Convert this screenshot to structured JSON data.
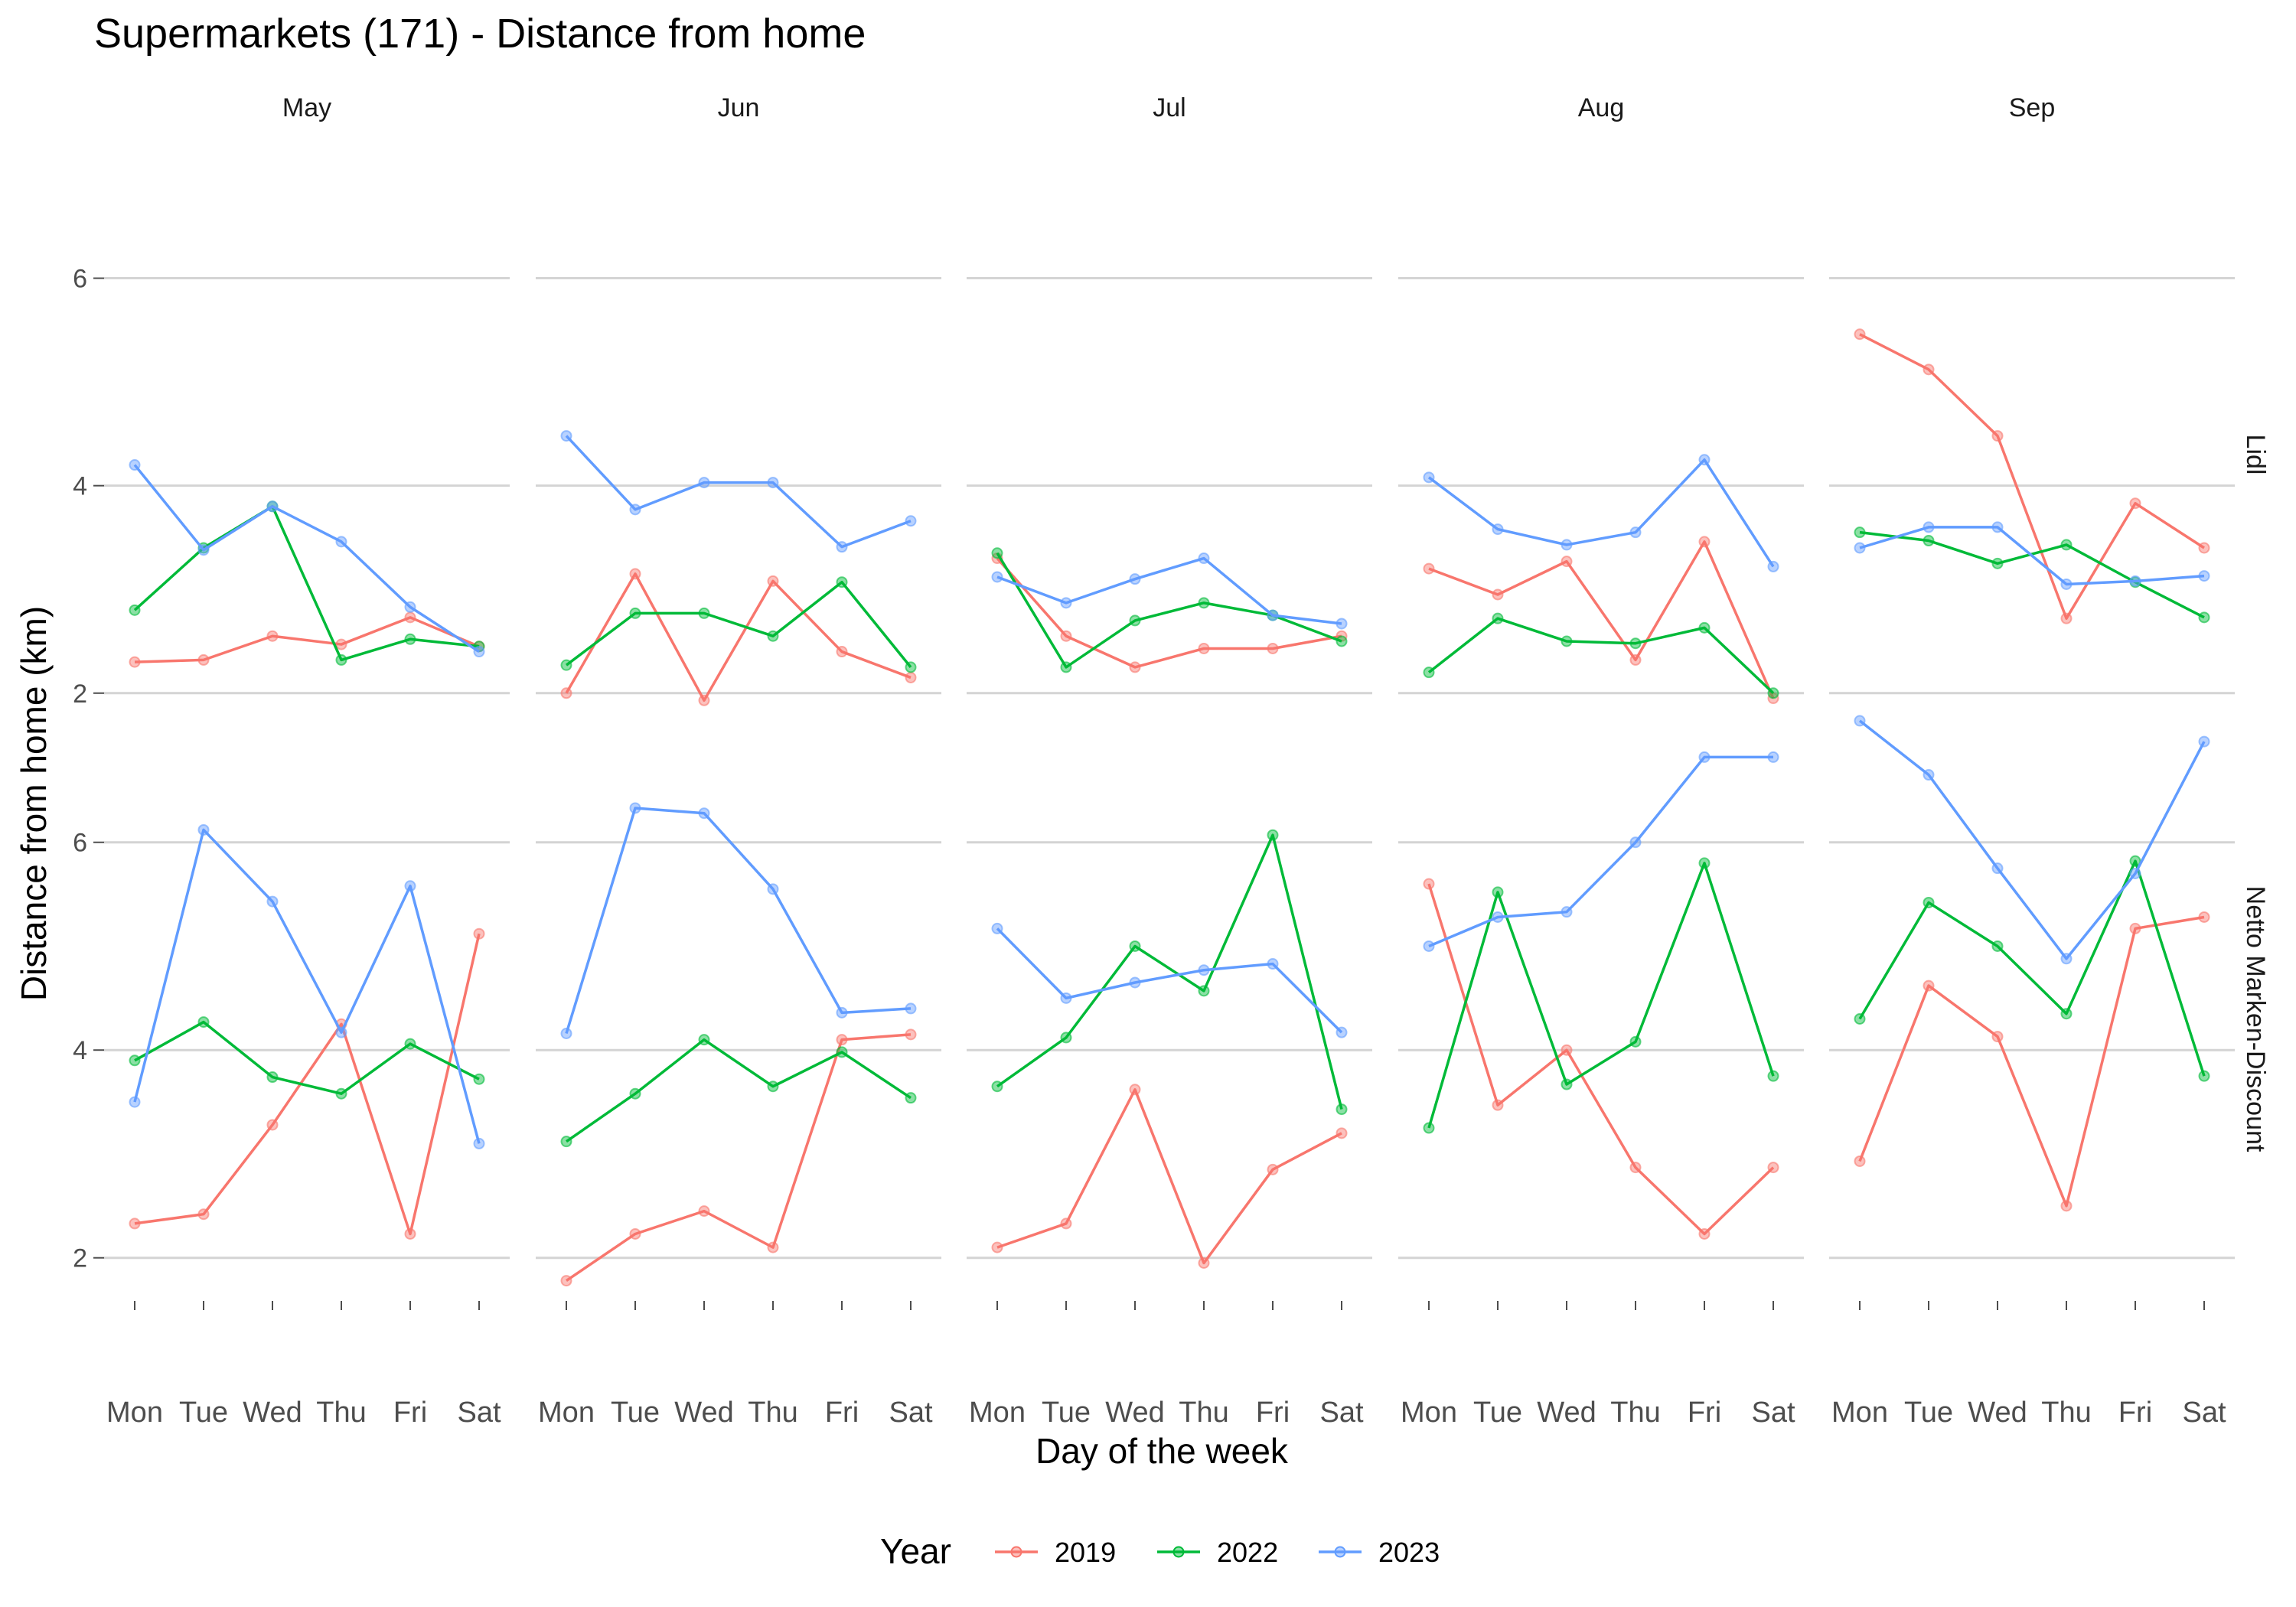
{
  "chart_data": {
    "type": "line",
    "title": "Supermarkets (171) - Distance from home",
    "xlabel": "Day of the week",
    "ylabel": "Distance from home (km)",
    "categories": [
      "Mon",
      "Tue",
      "Wed",
      "Thu",
      "Fri",
      "Sat"
    ],
    "columns": [
      "May",
      "Jun",
      "Jul",
      "Aug",
      "Sep"
    ],
    "rows": [
      {
        "name": "Lidl",
        "yticks": [
          2,
          4,
          6
        ],
        "ylim": [
          1.6,
          7.0
        ]
      },
      {
        "name": "Netto Marken-Discount",
        "yticks": [
          2,
          4,
          6
        ],
        "ylim": [
          1.6,
          7.0
        ]
      }
    ],
    "grid": true,
    "legend": {
      "title": "Year",
      "position": "bottom",
      "entries": [
        {
          "label": "2019",
          "color": "#F8766D"
        },
        {
          "label": "2022",
          "color": "#00BA38"
        },
        {
          "label": "2023",
          "color": "#619CFF"
        }
      ]
    },
    "panels": [
      {
        "row": "Lidl",
        "column": "May",
        "series": [
          {
            "year": "2019",
            "values": [
              2.3,
              2.32,
              2.55,
              2.47,
              2.73,
              2.45
            ]
          },
          {
            "year": "2022",
            "values": [
              2.8,
              3.4,
              3.8,
              2.32,
              2.52,
              2.45
            ]
          },
          {
            "year": "2023",
            "values": [
              4.2,
              3.38,
              3.8,
              3.46,
              2.83,
              2.4
            ]
          }
        ]
      },
      {
        "row": "Lidl",
        "column": "Jun",
        "series": [
          {
            "year": "2019",
            "values": [
              2.0,
              3.15,
              1.93,
              3.08,
              2.4,
              2.15
            ]
          },
          {
            "year": "2022",
            "values": [
              2.27,
              2.77,
              2.77,
              2.55,
              3.07,
              2.25
            ]
          },
          {
            "year": "2023",
            "values": [
              4.48,
              3.77,
              4.03,
              4.03,
              3.41,
              3.66
            ]
          }
        ]
      },
      {
        "row": "Lidl",
        "column": "Jul",
        "series": [
          {
            "year": "2019",
            "values": [
              3.3,
              2.55,
              2.25,
              2.43,
              2.43,
              2.55
            ]
          },
          {
            "year": "2022",
            "values": [
              3.35,
              2.25,
              2.7,
              2.87,
              2.75,
              2.5
            ]
          },
          {
            "year": "2023",
            "values": [
              3.12,
              2.87,
              3.1,
              3.3,
              2.75,
              2.67
            ]
          }
        ]
      },
      {
        "row": "Lidl",
        "column": "Aug",
        "series": [
          {
            "year": "2019",
            "values": [
              3.2,
              2.95,
              3.27,
              2.32,
              3.46,
              1.95
            ]
          },
          {
            "year": "2022",
            "values": [
              2.2,
              2.72,
              2.5,
              2.48,
              2.63,
              2.0
            ]
          },
          {
            "year": "2023",
            "values": [
              4.08,
              3.58,
              3.43,
              3.55,
              4.25,
              3.22
            ]
          }
        ]
      },
      {
        "row": "Lidl",
        "column": "Sep",
        "series": [
          {
            "year": "2019",
            "values": [
              5.46,
              5.12,
              4.48,
              2.72,
              3.83,
              3.4
            ]
          },
          {
            "year": "2022",
            "values": [
              3.55,
              3.47,
              3.25,
              3.43,
              3.07,
              2.73
            ]
          },
          {
            "year": "2023",
            "values": [
              3.4,
              3.6,
              3.6,
              3.05,
              3.08,
              3.13
            ]
          }
        ]
      },
      {
        "row": "Netto Marken-Discount",
        "column": "May",
        "series": [
          {
            "year": "2019",
            "values": [
              2.33,
              2.42,
              3.28,
              4.25,
              2.23,
              5.12
            ]
          },
          {
            "year": "2022",
            "values": [
              3.9,
              4.27,
              3.74,
              3.58,
              4.06,
              3.72
            ]
          },
          {
            "year": "2023",
            "values": [
              3.5,
              6.12,
              5.43,
              4.17,
              5.58,
              3.1
            ]
          }
        ]
      },
      {
        "row": "Netto Marken-Discount",
        "column": "Jun",
        "series": [
          {
            "year": "2019",
            "values": [
              1.78,
              2.23,
              2.45,
              2.1,
              4.1,
              4.15
            ]
          },
          {
            "year": "2022",
            "values": [
              3.12,
              3.58,
              4.1,
              3.65,
              3.98,
              3.54
            ]
          },
          {
            "year": "2023",
            "values": [
              4.16,
              6.33,
              6.28,
              5.55,
              4.36,
              4.4
            ]
          }
        ]
      },
      {
        "row": "Netto Marken-Discount",
        "column": "Jul",
        "series": [
          {
            "year": "2019",
            "values": [
              2.1,
              2.33,
              3.62,
              1.95,
              2.85,
              3.2
            ]
          },
          {
            "year": "2022",
            "values": [
              3.65,
              4.12,
              5.0,
              4.57,
              6.07,
              3.43
            ]
          },
          {
            "year": "2023",
            "values": [
              5.17,
              4.5,
              4.65,
              4.77,
              4.83,
              4.17
            ]
          }
        ]
      },
      {
        "row": "Netto Marken-Discount",
        "column": "Aug",
        "series": [
          {
            "year": "2019",
            "values": [
              5.6,
              3.47,
              4.0,
              2.87,
              2.23,
              2.87
            ]
          },
          {
            "year": "2022",
            "values": [
              3.25,
              5.52,
              3.67,
              4.08,
              5.8,
              3.75
            ]
          },
          {
            "year": "2023",
            "values": [
              5.0,
              5.28,
              5.33,
              6.0,
              6.82,
              6.82
            ]
          }
        ]
      },
      {
        "row": "Netto Marken-Discount",
        "column": "Sep",
        "series": [
          {
            "year": "2019",
            "values": [
              2.93,
              4.62,
              4.13,
              2.5,
              5.17,
              5.28
            ]
          },
          {
            "year": "2022",
            "values": [
              4.3,
              5.42,
              5.0,
              4.35,
              5.82,
              3.75
            ]
          },
          {
            "year": "2023",
            "values": [
              7.17,
              6.65,
              5.75,
              4.88,
              5.7,
              6.97
            ]
          }
        ]
      }
    ]
  }
}
